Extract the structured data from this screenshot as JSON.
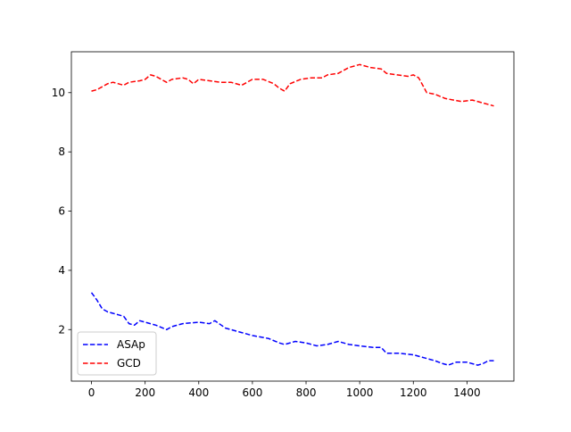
{
  "chart_data": {
    "type": "line",
    "title": "",
    "xlabel": "",
    "ylabel": "",
    "xlim": [
      -75,
      1575
    ],
    "ylim": [
      0.26,
      11.38
    ],
    "xticks": [
      0,
      200,
      400,
      600,
      800,
      1000,
      1200,
      1400
    ],
    "yticks": [
      2,
      4,
      6,
      8,
      10
    ],
    "grid": false,
    "legend_position": "lower-left",
    "series": [
      {
        "name": "ASAp",
        "color": "#0000ff",
        "linestyle": "dashed",
        "x": [
          0,
          20,
          40,
          60,
          80,
          100,
          120,
          140,
          160,
          180,
          200,
          240,
          280,
          300,
          340,
          400,
          440,
          460,
          500,
          560,
          600,
          660,
          700,
          720,
          760,
          800,
          840,
          880,
          920,
          960,
          1000,
          1050,
          1080,
          1100,
          1150,
          1200,
          1240,
          1280,
          1310,
          1330,
          1360,
          1400,
          1440,
          1460,
          1480,
          1500
        ],
        "y": [
          3.25,
          3.0,
          2.7,
          2.6,
          2.55,
          2.5,
          2.45,
          2.2,
          2.15,
          2.3,
          2.25,
          2.15,
          2.0,
          2.1,
          2.2,
          2.25,
          2.2,
          2.3,
          2.05,
          1.9,
          1.8,
          1.7,
          1.55,
          1.5,
          1.6,
          1.55,
          1.45,
          1.5,
          1.6,
          1.5,
          1.45,
          1.4,
          1.4,
          1.2,
          1.2,
          1.15,
          1.05,
          0.95,
          0.85,
          0.8,
          0.9,
          0.9,
          0.8,
          0.85,
          0.95,
          0.95
        ]
      },
      {
        "name": "GCD",
        "color": "#ff0000",
        "linestyle": "dashed",
        "x": [
          0,
          20,
          40,
          60,
          80,
          100,
          120,
          140,
          180,
          200,
          220,
          240,
          260,
          280,
          300,
          340,
          360,
          380,
          400,
          440,
          480,
          520,
          560,
          600,
          640,
          680,
          700,
          720,
          740,
          780,
          820,
          860,
          880,
          920,
          960,
          1000,
          1040,
          1080,
          1100,
          1140,
          1180,
          1200,
          1220,
          1250,
          1280,
          1320,
          1350,
          1380,
          1420,
          1460,
          1500
        ],
        "y": [
          10.05,
          10.1,
          10.2,
          10.3,
          10.35,
          10.3,
          10.25,
          10.35,
          10.4,
          10.45,
          10.6,
          10.55,
          10.45,
          10.35,
          10.45,
          10.5,
          10.45,
          10.3,
          10.45,
          10.4,
          10.35,
          10.35,
          10.25,
          10.45,
          10.45,
          10.3,
          10.15,
          10.05,
          10.3,
          10.45,
          10.5,
          10.5,
          10.6,
          10.65,
          10.85,
          10.95,
          10.85,
          10.8,
          10.65,
          10.6,
          10.55,
          10.6,
          10.5,
          10.0,
          9.95,
          9.8,
          9.75,
          9.7,
          9.75,
          9.65,
          9.55
        ]
      }
    ]
  }
}
